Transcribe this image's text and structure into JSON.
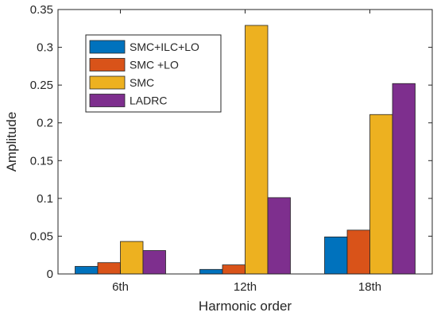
{
  "chart_data": {
    "type": "bar",
    "categories": [
      "6th",
      "12th",
      "18th"
    ],
    "series": [
      {
        "name": "SMC+ILC+LO",
        "values": [
          0.01,
          0.006,
          0.049
        ],
        "color": "#0072BD"
      },
      {
        "name": "SMC +LO",
        "values": [
          0.015,
          0.012,
          0.058
        ],
        "color": "#D95319"
      },
      {
        "name": "SMC",
        "values": [
          0.043,
          0.329,
          0.211
        ],
        "color": "#EDB120"
      },
      {
        "name": "LADRC",
        "values": [
          0.031,
          0.101,
          0.252
        ],
        "color": "#7E2F8E"
      }
    ],
    "title": "",
    "xlabel": "Harmonic order",
    "ylabel": "Amplitude",
    "ylim": [
      0,
      0.35
    ],
    "yticks": [
      "0",
      "0.05",
      "0.1",
      "0.15",
      "0.2",
      "0.25",
      "0.3",
      "0.35"
    ],
    "grid": false,
    "legend_position": "top-left"
  }
}
